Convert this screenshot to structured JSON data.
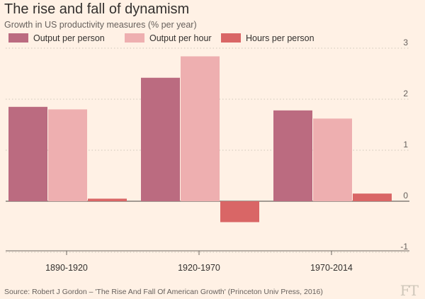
{
  "title": "The rise and fall of dynamism",
  "subtitle": "Growth in US productivity measures (% per year)",
  "source": "Source: Robert J Gordon – 'The Rise And Fall Of American Growth' (Princeton Univ Press, 2016)",
  "logo": "FT",
  "chart_data": {
    "type": "bar",
    "title": "The rise and fall of dynamism",
    "subtitle": "Growth in US productivity measures (% per year)",
    "categories": [
      "1890-1920",
      "1920-1970",
      "1970-2014"
    ],
    "series": [
      {
        "name": "Output per person",
        "color": "#bb6b80",
        "values": [
          1.85,
          2.42,
          1.78
        ]
      },
      {
        "name": "Output per hour",
        "color": "#eeafb0",
        "values": [
          1.8,
          2.84,
          1.62
        ]
      },
      {
        "name": "Hours per person",
        "color": "#d96666",
        "values": [
          0.05,
          -0.41,
          0.15
        ]
      }
    ],
    "yticks": [
      3,
      2,
      1,
      0,
      -1
    ],
    "ylim": [
      -1,
      3
    ],
    "legend": "top-left",
    "xlabel": "",
    "ylabel": ""
  }
}
